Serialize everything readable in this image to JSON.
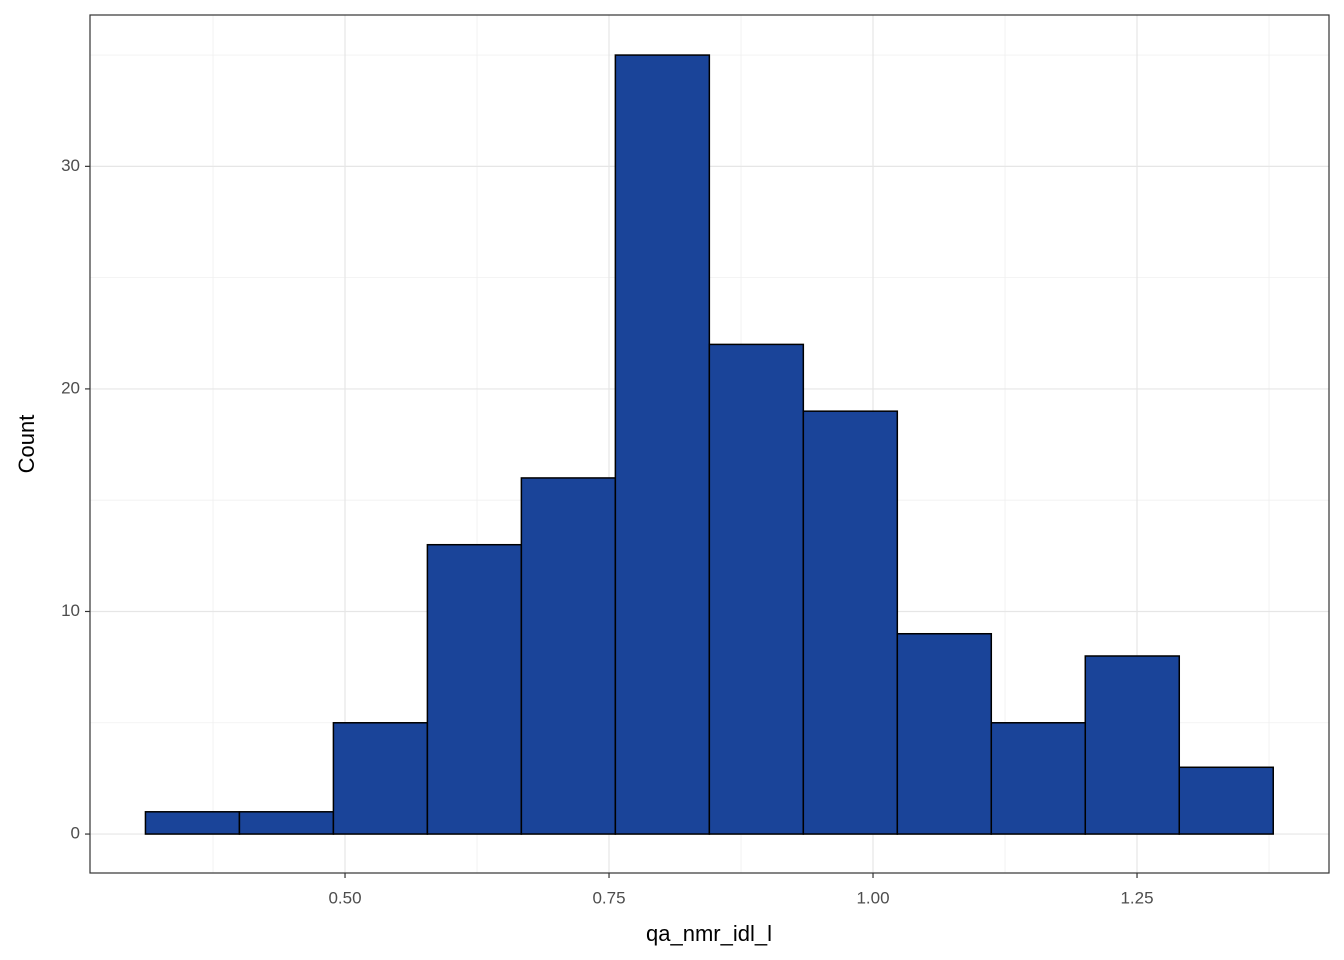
{
  "chart_data": {
    "type": "histogram",
    "x_label": "qa_nmr_idl_l",
    "y_label": "Count",
    "bins": [
      0.311,
      0.4,
      0.489,
      0.578,
      0.667,
      0.756,
      0.845,
      0.934,
      1.023,
      1.112,
      1.201,
      1.29,
      1.379
    ],
    "values": [
      1,
      1,
      5,
      13,
      16,
      35,
      22,
      19,
      9,
      5,
      8,
      3
    ],
    "color": "#1a4499",
    "edgecolor": "#000000",
    "xlim": [
      0.2585,
      1.4318
    ],
    "ylim": [
      -1.75,
      36.8
    ],
    "xticks": [
      {
        "value": 0.5,
        "label": "0.50"
      },
      {
        "value": 0.75,
        "label": "0.75"
      },
      {
        "value": 1.0,
        "label": "1.00"
      },
      {
        "value": 1.25,
        "label": "1.25"
      }
    ],
    "yticks": [
      0,
      10,
      20,
      30
    ],
    "grid": true
  }
}
